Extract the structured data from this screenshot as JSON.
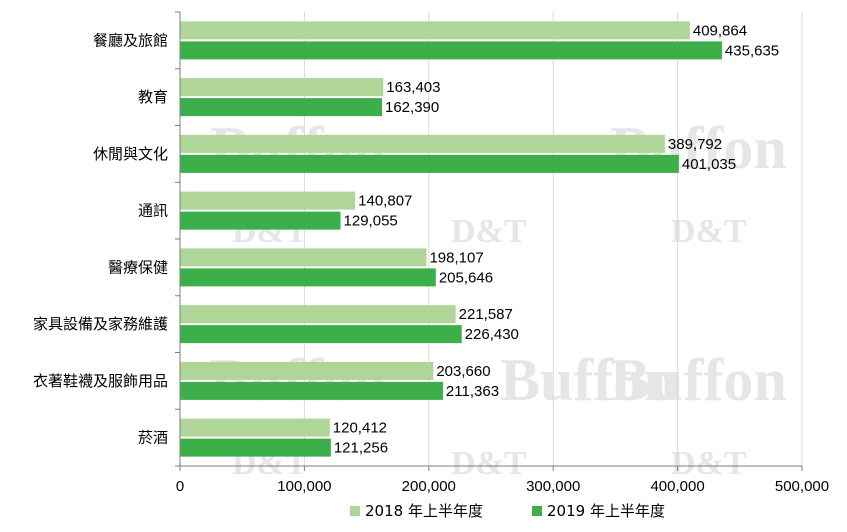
{
  "watermark": {
    "brand_text": "Buffon",
    "mark_text": "D&T"
  },
  "colors": {
    "series_2018": "#b0d598",
    "series_2019": "#3cae4a",
    "gridline": "#d9d9d9",
    "axis": "#7f7f7f",
    "watermark": "#e6e6e6"
  },
  "chart_data": {
    "type": "bar",
    "orientation": "horizontal",
    "categories": [
      "餐廳及旅館",
      "教育",
      "休閒與文化",
      "通訊",
      "醫療保健",
      "家具設備及家務維護",
      "衣著鞋襪及服飾用品",
      "菸酒"
    ],
    "series": [
      {
        "name": "2018 年上半年度",
        "color": "#b0d598",
        "values": [
          409864,
          163403,
          389792,
          140807,
          198107,
          221587,
          203660,
          120412
        ],
        "value_labels": [
          "409,864",
          "163,403",
          "389,792",
          "140,807",
          "198,107",
          "221,587",
          "203,660",
          "120,412"
        ]
      },
      {
        "name": "2019 年上半年度",
        "color": "#3cae4a",
        "values": [
          435635,
          162390,
          401035,
          129055,
          205646,
          226430,
          211363,
          121256
        ],
        "value_labels": [
          "435,635",
          "162,390",
          "401,035",
          "129,055",
          "205,646",
          "226,430",
          "211,363",
          "121,256"
        ]
      }
    ],
    "xlim": [
      0,
      500000
    ],
    "xticks": [
      0,
      100000,
      200000,
      300000,
      400000,
      500000
    ],
    "xtick_labels": [
      "0",
      "100,000",
      "200,000",
      "300,000",
      "400,000",
      "500,000"
    ],
    "grid": "vertical",
    "legend_position": "bottom",
    "title": "",
    "xlabel": "",
    "ylabel": ""
  }
}
